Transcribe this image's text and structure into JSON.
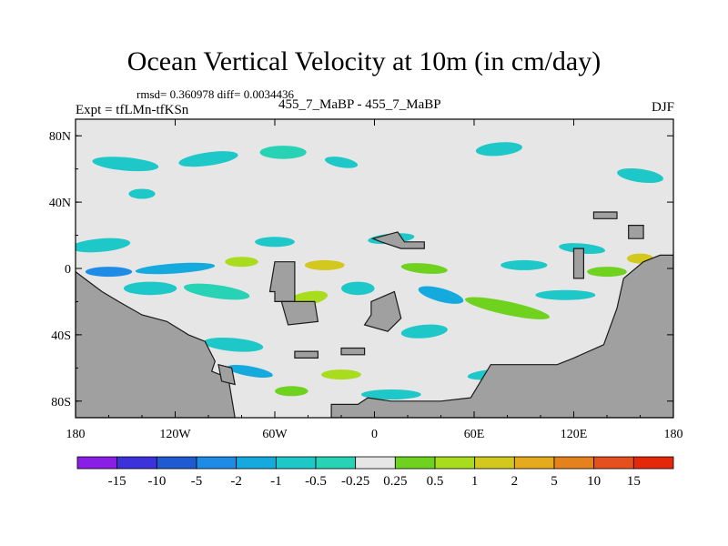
{
  "header": {
    "title": "Ocean Vertical Velocity at 10m (in cm/day)",
    "stats": "rmsd= 0.360978 diff= 0.0034436",
    "left_label": "Expt = tfLMn-tfKSn",
    "center_label": "455_7_MaBP - 455_7_MaBP",
    "right_label": "DJF"
  },
  "chart_data": {
    "type": "heatmap",
    "title": "Ocean Vertical Velocity at 10m (in cm/day)",
    "subtitle": "455_7_MaBP - 455_7_MaBP",
    "season": "DJF",
    "statistics": {
      "rmsd": 0.360978,
      "diff": 0.0034436
    },
    "experiment": "tfLMn-tfKSn",
    "x_axis": {
      "range": [
        -180,
        180
      ],
      "ticks": [
        -180,
        -120,
        -60,
        0,
        60,
        120,
        180
      ],
      "tick_labels": [
        "180",
        "120W",
        "60W",
        "0",
        "60E",
        "120E",
        "180"
      ]
    },
    "y_axis": {
      "range": [
        -90,
        90
      ],
      "ticks": [
        80,
        40,
        0,
        -40,
        -80
      ],
      "tick_labels": [
        "80N",
        "40N",
        "0",
        "40S",
        "80S"
      ]
    },
    "colorbar": {
      "labels": [
        "-15",
        "-10",
        "-5",
        "-2",
        "-1",
        "-0.5",
        "-0.25",
        "0.25",
        "0.5",
        "1",
        "2",
        "5",
        "10",
        "15"
      ],
      "colors": [
        "#8a1ee6",
        "#3c32dc",
        "#1e5ad2",
        "#1e8ce6",
        "#14aade",
        "#1ec8c8",
        "#28d2b4",
        "#e6e6e6",
        "#6ed21e",
        "#aadc1e",
        "#d2c81e",
        "#e6aa1e",
        "#e6821e",
        "#e6501e",
        "#e6280a"
      ]
    },
    "background_color": "#e6e6e6",
    "land_color": "#a0a0a0"
  }
}
